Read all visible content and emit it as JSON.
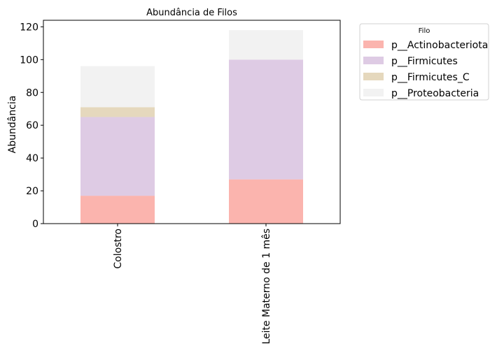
{
  "chart_data": {
    "type": "bar",
    "stacked": true,
    "title": "Abundância de Filos",
    "xlabel": "",
    "ylabel": "Abundância",
    "categories": [
      "Colostro",
      "Leite Materno de 1 mês"
    ],
    "ylim": [
      0,
      124
    ],
    "yticks": [
      0,
      20,
      40,
      60,
      80,
      100,
      120
    ],
    "grid": false,
    "legend_title": "Filo",
    "legend_position": "outside-right-top",
    "series": [
      {
        "name": "p__Actinobacteriota",
        "color": "#fbb4ae",
        "values": [
          17,
          27
        ]
      },
      {
        "name": "p__Firmicutes",
        "color": "#decbe4",
        "values": [
          48,
          73
        ]
      },
      {
        "name": "p__Firmicutes_C",
        "color": "#e5d8bd",
        "values": [
          6,
          0
        ]
      },
      {
        "name": "p__Proteobacteria",
        "color": "#f2f2f2",
        "values": [
          25,
          18
        ]
      }
    ]
  }
}
